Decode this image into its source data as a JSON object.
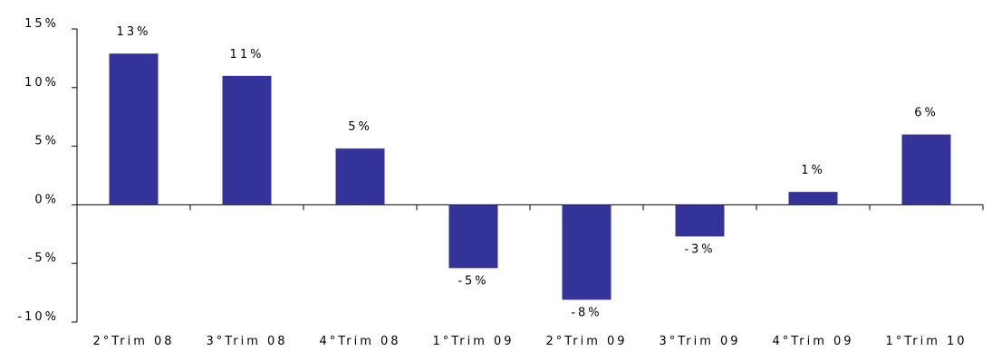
{
  "chart_data": {
    "type": "bar",
    "categories": [
      "2°Trim 08",
      "3°Trim 08",
      "4°Trim 08",
      "1°Trim 09",
      "2°Trim 09",
      "3°Trim 09",
      "4°Trim 09",
      "1°Trim 10"
    ],
    "values": [
      13,
      11,
      5,
      -5,
      -8,
      -3,
      1,
      6
    ],
    "bar_heights_pct": [
      12.9,
      11.0,
      4.8,
      -5.4,
      -8.1,
      -2.7,
      1.1,
      6.0
    ],
    "data_labels": [
      "13%",
      "11%",
      "5%",
      "-5%",
      "-8%",
      "-3%",
      "1%",
      "6%"
    ],
    "y_ticks": [
      15,
      10,
      5,
      0,
      -5,
      -10
    ],
    "y_tick_labels": [
      "15%",
      "10%",
      "5%",
      "0%",
      "-5%",
      "-10%"
    ],
    "ylim": [
      -10,
      15
    ],
    "title": "",
    "xlabel": "",
    "ylabel": "",
    "grid": false,
    "legend": "none",
    "bar_color": "#333399"
  }
}
